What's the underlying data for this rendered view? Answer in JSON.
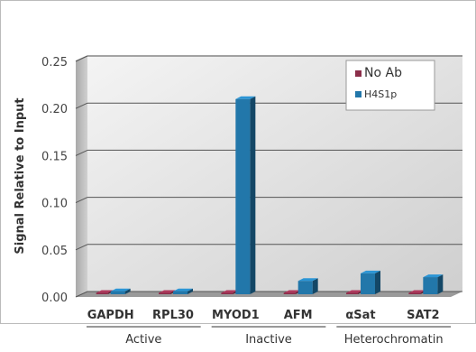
{
  "chart_data": {
    "type": "bar",
    "ylabel": "Signal Relative to Input",
    "ylim": [
      0,
      0.25
    ],
    "yticks": [
      "0.00",
      "0.05",
      "0.10",
      "0.15",
      "0.20",
      "0.25"
    ],
    "categories": [
      "GAPDH",
      "RPL30",
      "MYOD1",
      "AFM",
      "αSat",
      "SAT2"
    ],
    "groups": [
      {
        "label": "Active",
        "categories": [
          "GAPDH",
          "RPL30"
        ]
      },
      {
        "label": "Inactive",
        "categories": [
          "MYOD1",
          "AFM"
        ]
      },
      {
        "label": "Heterochromatin",
        "categories": [
          "αSat",
          "SAT2"
        ]
      }
    ],
    "series": [
      {
        "name": "No Ab",
        "color": "#8b2e4a",
        "values": [
          0.001,
          0.001,
          0.001,
          0.001,
          0.001,
          0.001
        ]
      },
      {
        "name": "H4S1p",
        "color": "#2277aa",
        "values": [
          0.006,
          0.006,
          0.21,
          0.017,
          0.025,
          0.021
        ]
      }
    ],
    "grid": true,
    "legend_position": "top-right"
  }
}
